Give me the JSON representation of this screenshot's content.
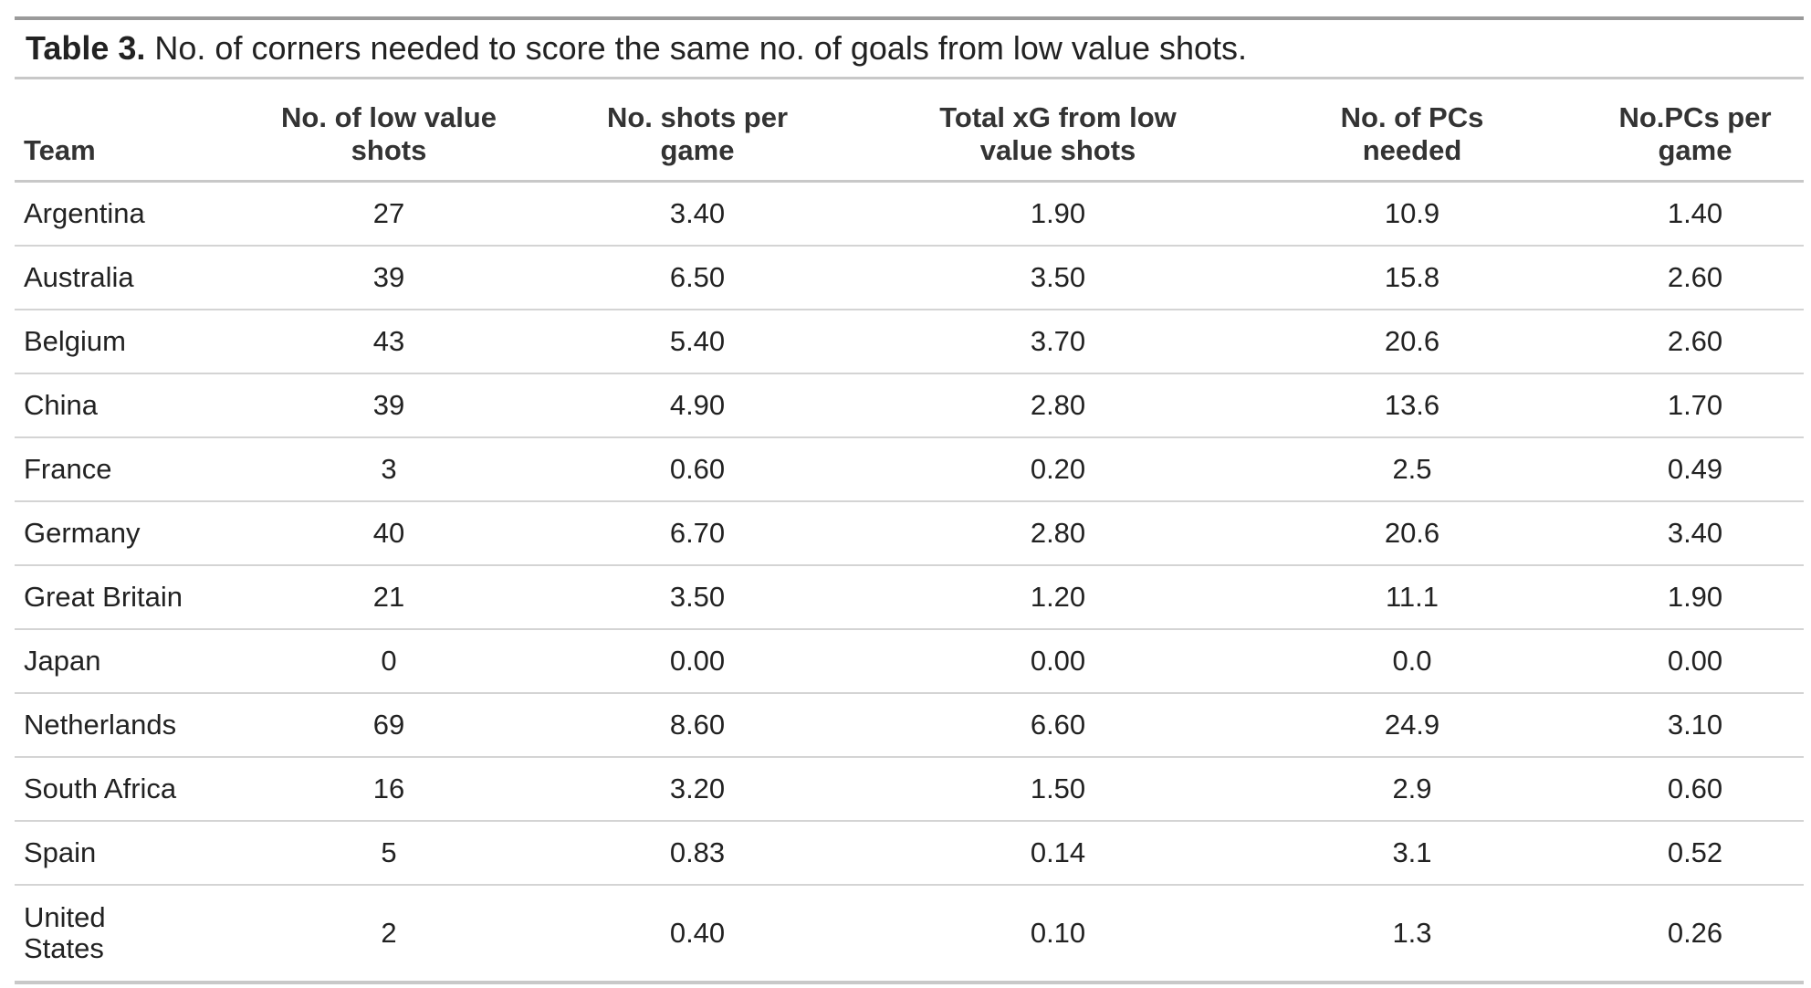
{
  "caption": {
    "label": "Table 3.",
    "text": " No. of corners needed to score the same no. of goals from low value shots."
  },
  "columns": [
    "Team",
    "No. of low value shots",
    "No. shots per game",
    "Total xG from low value shots",
    "No. of PCs needed",
    "No.PCs per game"
  ],
  "rows": [
    [
      "Argentina",
      "27",
      "3.40",
      "1.90",
      "10.9",
      "1.40"
    ],
    [
      "Australia",
      "39",
      "6.50",
      "3.50",
      "15.8",
      "2.60"
    ],
    [
      "Belgium",
      "43",
      "5.40",
      "3.70",
      "20.6",
      "2.60"
    ],
    [
      "China",
      "39",
      "4.90",
      "2.80",
      "13.6",
      "1.70"
    ],
    [
      "France",
      "3",
      "0.60",
      "0.20",
      "2.5",
      "0.49"
    ],
    [
      "Germany",
      "40",
      "6.70",
      "2.80",
      "20.6",
      "3.40"
    ],
    [
      "Great Britain",
      "21",
      "3.50",
      "1.20",
      "11.1",
      "1.90"
    ],
    [
      "Japan",
      "0",
      "0.00",
      "0.00",
      "0.0",
      "0.00"
    ],
    [
      "Netherlands",
      "69",
      "8.60",
      "6.60",
      "24.9",
      "3.10"
    ],
    [
      "South Africa",
      "16",
      "3.20",
      "1.50",
      "2.9",
      "0.60"
    ],
    [
      "Spain",
      "5",
      "0.83",
      "0.14",
      "3.1",
      "0.52"
    ],
    [
      "United States",
      "2",
      "0.40",
      "0.10",
      "1.3",
      "0.26"
    ]
  ]
}
